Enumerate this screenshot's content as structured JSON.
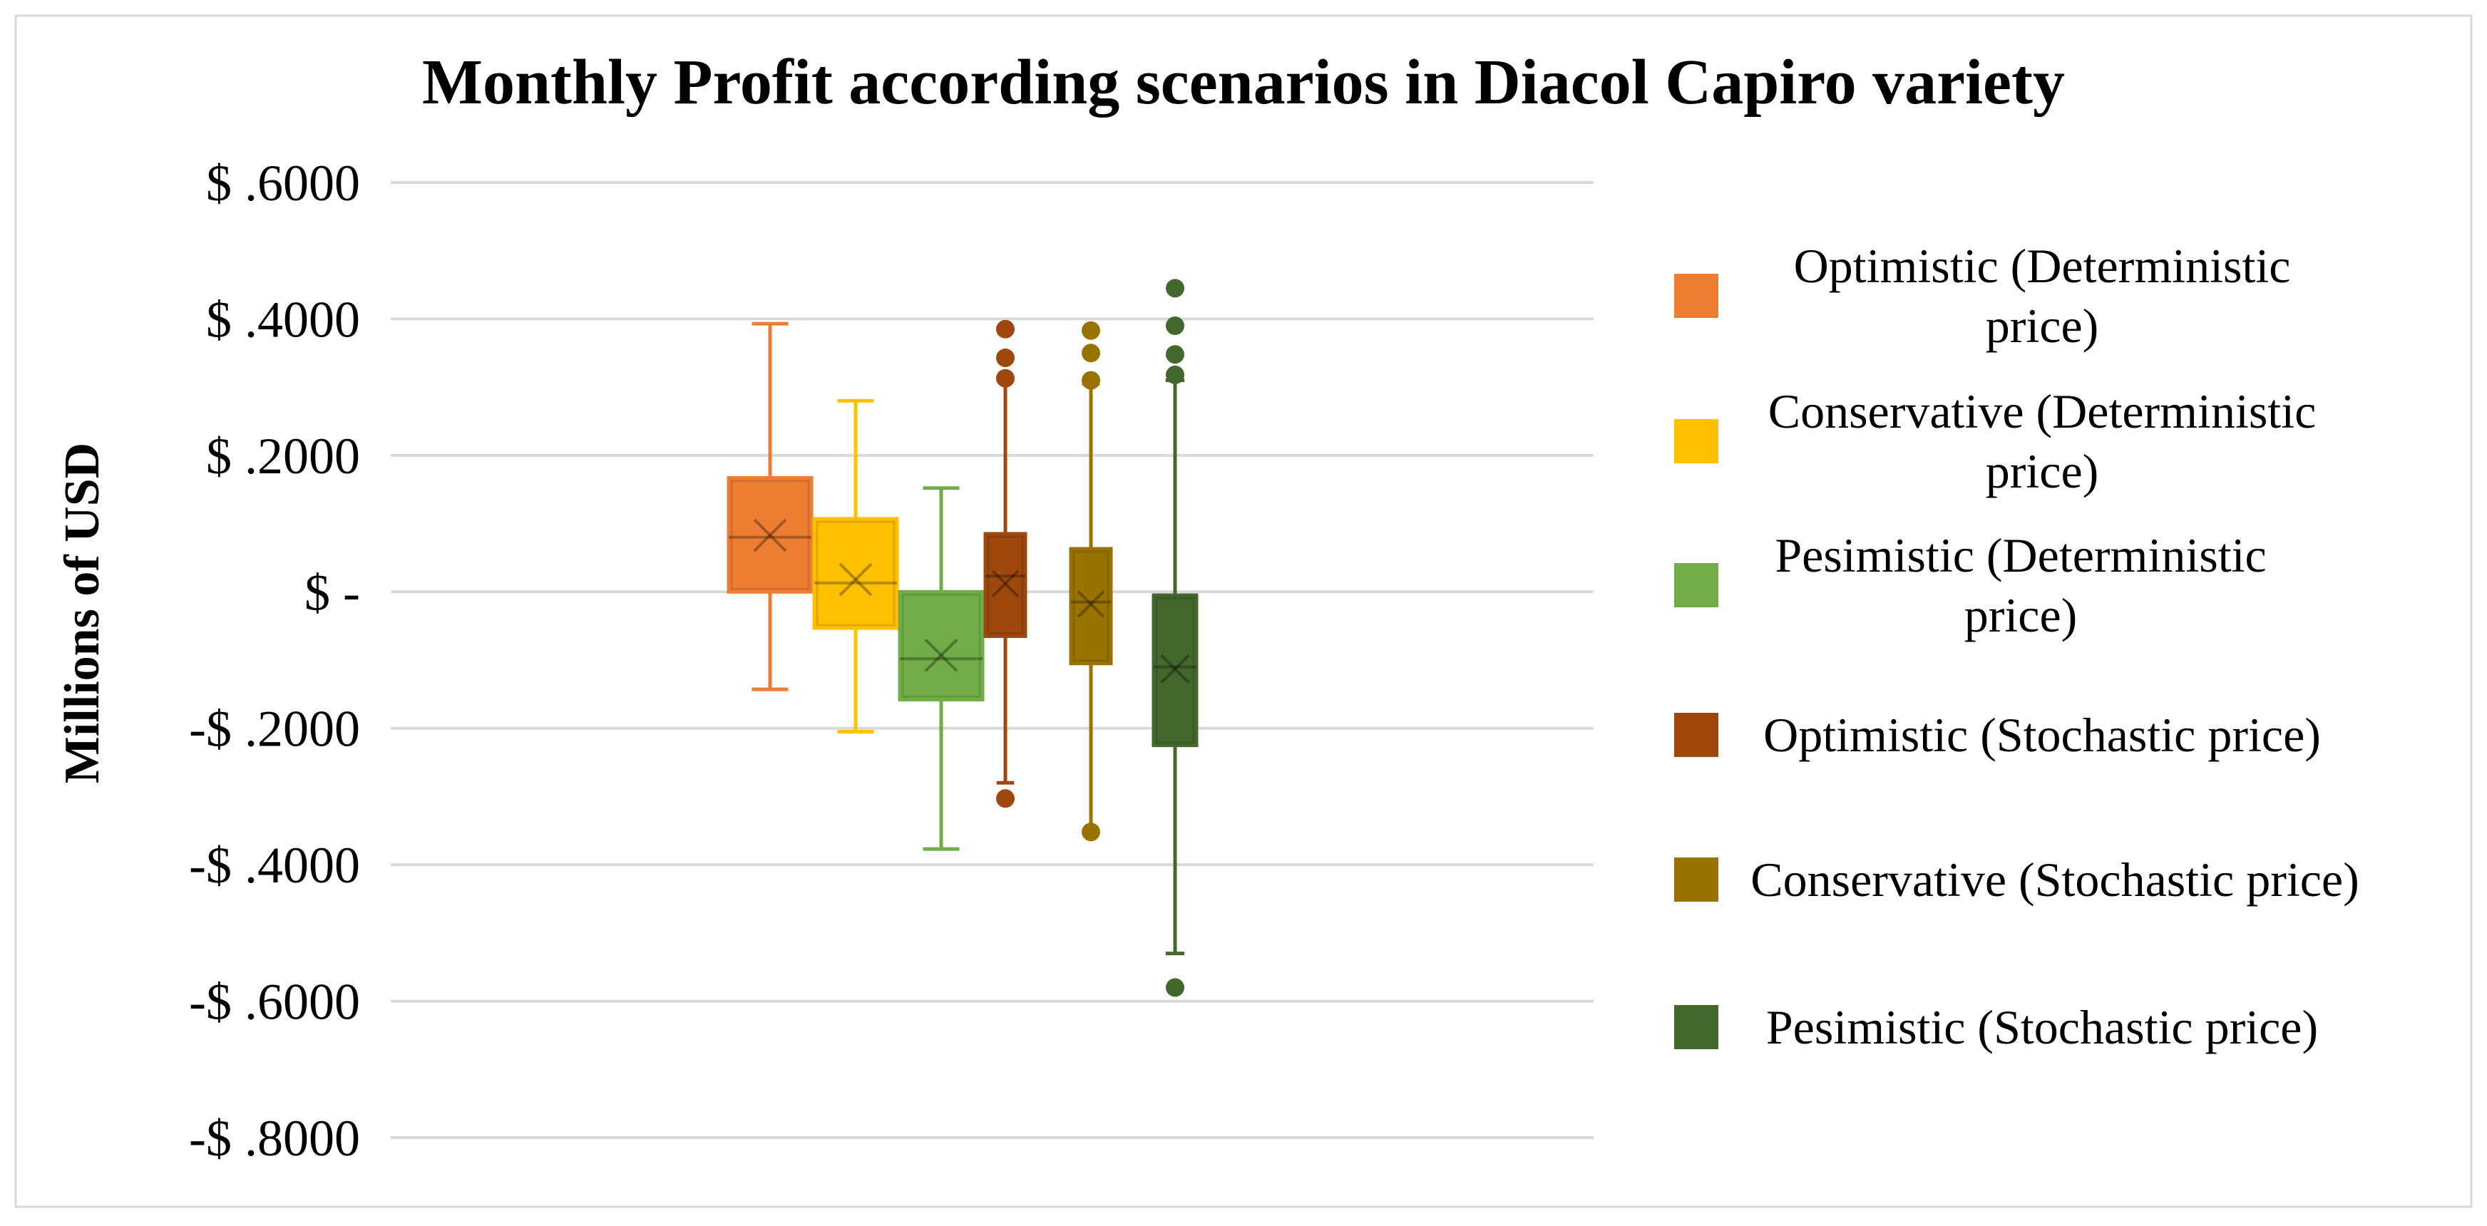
{
  "chart_data": {
    "type": "boxplot",
    "title": "Monthly Profit according scenarios in Diacol Capiro variety",
    "ylabel": "Millions of USD",
    "xlabel": "",
    "ylim": [
      -0.8,
      0.6
    ],
    "yticks": [
      0.6,
      0.4,
      0.2,
      0,
      -0.2,
      -0.4,
      -0.6,
      -0.8
    ],
    "ytick_labels": [
      "$ .6000",
      "$ .4000",
      "$ .2000",
      "$ -",
      "-$ .2000",
      "-$ .4000",
      "-$ .6000",
      "-$ .8000"
    ],
    "grid": true,
    "legend_position": "right",
    "series": [
      {
        "name": "Optimistic (Deterministic price)",
        "legend_lines": [
          "Optimistic (Deterministic",
          "price)"
        ],
        "color": "#ED7D31",
        "whisker_low": -0.143,
        "q1": 0.0,
        "median": 0.08,
        "q3": 0.167,
        "whisker_high": 0.393,
        "mean": 0.083,
        "outliers": []
      },
      {
        "name": "Conservative (Deterministic price)",
        "legend_lines": [
          "Conservative (Deterministic",
          "price)"
        ],
        "color": "#FFC000",
        "whisker_low": -0.205,
        "q1": -0.053,
        "median": 0.013,
        "q3": 0.107,
        "whisker_high": 0.28,
        "mean": 0.018,
        "outliers": []
      },
      {
        "name": "Pesimistic (Deterministic price)",
        "legend_lines": [
          "Pesimistic (Deterministic",
          "price)"
        ],
        "color": "#70AD47",
        "whisker_low": -0.377,
        "q1": -0.158,
        "median": -0.098,
        "q3": 0.0,
        "whisker_high": 0.152,
        "mean": -0.093,
        "outliers": []
      },
      {
        "name": "Optimistic (Stochastic price)",
        "legend_lines": [
          "Optimistic (Stochastic price)"
        ],
        "color": "#9E480E",
        "whisker_low": -0.28,
        "q1": -0.065,
        "median": 0.023,
        "q3": 0.085,
        "whisker_high": 0.31,
        "mean": 0.012,
        "outliers": [
          0.385,
          0.343,
          0.313,
          -0.303
        ]
      },
      {
        "name": "Conservative (Stochastic price)",
        "legend_lines": [
          "Conservative (Stochastic price)"
        ],
        "color": "#997300",
        "whisker_low": -0.35,
        "q1": -0.105,
        "median": -0.015,
        "q3": 0.063,
        "whisker_high": 0.305,
        "mean": -0.018,
        "outliers": [
          0.383,
          0.35,
          0.31,
          -0.352
        ]
      },
      {
        "name": "Pesimistic (Stochastic price)",
        "legend_lines": [
          "Pesimistic (Stochastic price)"
        ],
        "color": "#43682B",
        "whisker_low": -0.53,
        "q1": -0.225,
        "median": -0.11,
        "q3": -0.005,
        "whisker_high": 0.31,
        "mean": -0.113,
        "outliers": [
          0.445,
          0.39,
          0.348,
          0.318,
          -0.58
        ]
      }
    ]
  }
}
